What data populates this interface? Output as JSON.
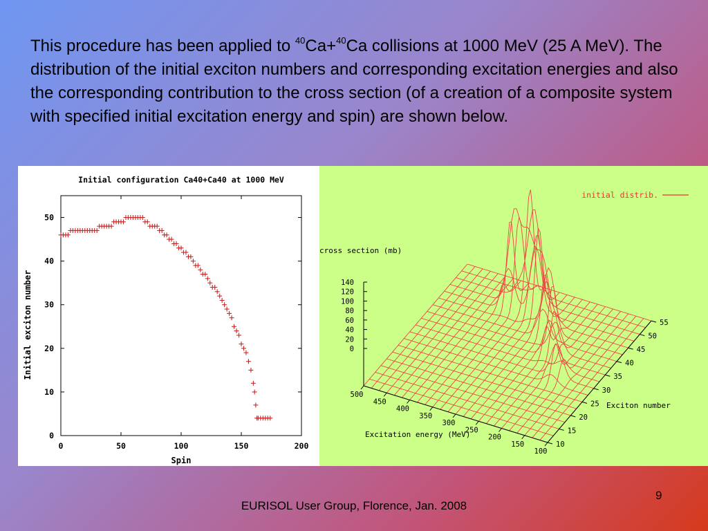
{
  "slide": {
    "paragraph": {
      "part1": "This procedure has been applied to ",
      "sup1": "40",
      "part2": "Ca+",
      "sup2": "40",
      "part3": "Ca collisions at 1000 MeV (25 A MeV). The distribution of the initial exciton numbers and corresponding excitation energies and also the corresponding contribution to the cross section (of a creation of a composite system with specified initial excitation energy and spin) are shown below."
    },
    "footer": "EURISOL User Group, Florence, Jan. 2008",
    "page_number": "9"
  },
  "colors": {
    "marker": "#cc2222",
    "surface": "#ee4444",
    "right_bg": "#ccff88"
  },
  "chart_data": [
    {
      "type": "scatter",
      "title": "Initial configuration Ca40+Ca40 at 1000 MeV",
      "xlabel": "Spin",
      "ylabel": "Initial exciton number",
      "xlim": [
        0,
        200
      ],
      "ylim": [
        0,
        55
      ],
      "xticks": [
        "0",
        "50",
        "100",
        "150",
        "200"
      ],
      "yticks": [
        "0",
        "10",
        "20",
        "30",
        "40",
        "50"
      ],
      "points": [
        [
          0,
          46
        ],
        [
          2,
          46
        ],
        [
          4,
          46
        ],
        [
          6,
          46
        ],
        [
          8,
          47
        ],
        [
          10,
          47
        ],
        [
          12,
          47
        ],
        [
          14,
          47
        ],
        [
          16,
          47
        ],
        [
          18,
          47
        ],
        [
          20,
          47
        ],
        [
          22,
          47
        ],
        [
          24,
          47
        ],
        [
          26,
          47
        ],
        [
          28,
          47
        ],
        [
          30,
          47
        ],
        [
          32,
          48
        ],
        [
          34,
          48
        ],
        [
          36,
          48
        ],
        [
          38,
          48
        ],
        [
          40,
          48
        ],
        [
          42,
          48
        ],
        [
          44,
          49
        ],
        [
          46,
          49
        ],
        [
          48,
          49
        ],
        [
          50,
          49
        ],
        [
          52,
          49
        ],
        [
          54,
          50
        ],
        [
          56,
          50
        ],
        [
          58,
          50
        ],
        [
          60,
          50
        ],
        [
          62,
          50
        ],
        [
          64,
          50
        ],
        [
          66,
          50
        ],
        [
          68,
          50
        ],
        [
          70,
          49
        ],
        [
          72,
          49
        ],
        [
          74,
          48
        ],
        [
          76,
          48
        ],
        [
          78,
          48
        ],
        [
          80,
          48
        ],
        [
          82,
          47
        ],
        [
          84,
          47
        ],
        [
          86,
          46
        ],
        [
          88,
          46
        ],
        [
          90,
          45
        ],
        [
          92,
          45
        ],
        [
          94,
          44
        ],
        [
          96,
          44
        ],
        [
          98,
          43
        ],
        [
          100,
          43
        ],
        [
          102,
          42
        ],
        [
          104,
          42
        ],
        [
          106,
          41
        ],
        [
          108,
          41
        ],
        [
          110,
          40
        ],
        [
          112,
          39
        ],
        [
          114,
          39
        ],
        [
          116,
          38
        ],
        [
          118,
          37
        ],
        [
          120,
          37
        ],
        [
          122,
          36
        ],
        [
          124,
          35
        ],
        [
          126,
          34
        ],
        [
          128,
          34
        ],
        [
          130,
          33
        ],
        [
          132,
          32
        ],
        [
          134,
          31
        ],
        [
          136,
          30
        ],
        [
          138,
          29
        ],
        [
          140,
          28
        ],
        [
          142,
          27
        ],
        [
          144,
          25
        ],
        [
          146,
          24
        ],
        [
          148,
          23
        ],
        [
          150,
          21
        ],
        [
          152,
          20
        ],
        [
          154,
          19
        ],
        [
          156,
          17
        ],
        [
          158,
          15
        ],
        [
          160,
          12
        ],
        [
          161,
          10
        ],
        [
          162,
          7
        ],
        [
          163,
          4
        ],
        [
          164,
          4
        ],
        [
          166,
          4
        ],
        [
          168,
          4
        ],
        [
          170,
          4
        ],
        [
          172,
          4
        ],
        [
          174,
          4
        ]
      ]
    },
    {
      "type": "surface",
      "legend": "initial distrib.",
      "zlabel": "cross section (mb)",
      "xlabel": "Excitation energy (MeV)",
      "ylabel": "Exciton number",
      "zticks": [
        "140",
        "120",
        "100",
        "80",
        "60",
        "40",
        "20",
        "0"
      ],
      "xticks": [
        "500",
        "450",
        "400",
        "350",
        "300",
        "250",
        "200",
        "150",
        "100"
      ],
      "yticks": [
        "10",
        "15",
        "20",
        "25",
        "30",
        "35",
        "40",
        "45",
        "50",
        "55"
      ],
      "zlim": [
        0,
        140
      ],
      "xlim": [
        100,
        500
      ],
      "ylim": [
        10,
        55
      ],
      "peaks": [
        {
          "energy": 360,
          "exciton": 47,
          "height": 115
        },
        {
          "energy": 330,
          "exciton": 49,
          "height": 135
        },
        {
          "energy": 300,
          "exciton": 46,
          "height": 105
        },
        {
          "energy": 260,
          "exciton": 42,
          "height": 80
        },
        {
          "energy": 220,
          "exciton": 36,
          "height": 55
        },
        {
          "energy": 180,
          "exciton": 30,
          "height": 40
        }
      ]
    }
  ]
}
